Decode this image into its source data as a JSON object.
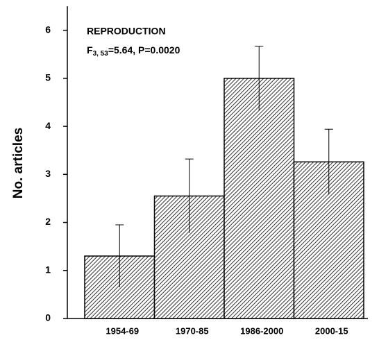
{
  "chart_data": {
    "type": "bar",
    "ylabel": "No. articles",
    "annotation": {
      "title": "REPRODUCTION",
      "stat_symbol": "F",
      "stat_subscript": "3, 53",
      "stat_text": "=5.64, P=0.0020"
    },
    "categories": [
      "1954-69",
      "1970-85",
      "1986-2000",
      "2000-15"
    ],
    "values": [
      1.3,
      2.55,
      5.0,
      3.26
    ],
    "errors": [
      0.65,
      0.77,
      0.67,
      0.68
    ],
    "ylim": [
      0,
      6.5
    ],
    "yticks": [
      0,
      1,
      2,
      3,
      4,
      5,
      6
    ],
    "color": "#000000",
    "grid": false
  }
}
